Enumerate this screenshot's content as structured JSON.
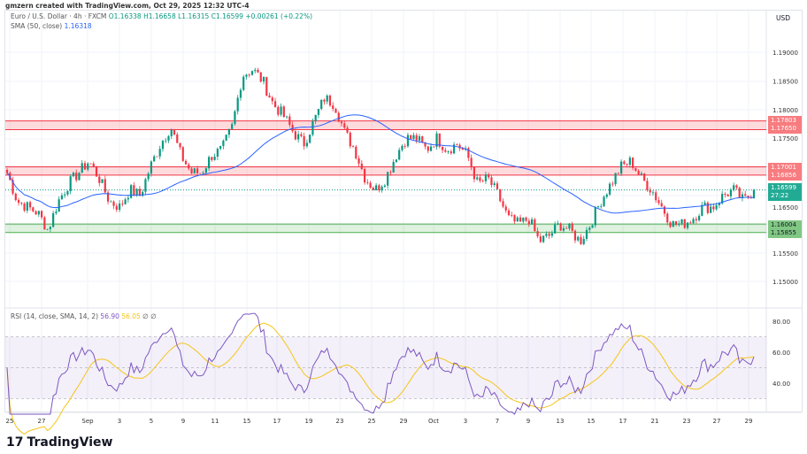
{
  "header": {
    "credit": "gmzern created with TradingView.com, Oct 29, 2025 12:32 UTC-4",
    "symbol": "Euro / U.S. Dollar · 4h · FXCM",
    "open": "O1.16338",
    "high": "H1.16658",
    "low": "L1.16315",
    "close": "C1.16599",
    "change": "+0.00261 (+0.22%)",
    "sma_label": "SMA (50, close)",
    "sma_value": "1.16318",
    "rsi_label": "RSI (14, close, SMA, 14, 2)",
    "rsi_value": "56.90",
    "rsi_sma_value": "56.05",
    "rsi_extra": "∅ ∅"
  },
  "price_axis": {
    "currency": "USD",
    "ticks": [
      "1.19000",
      "1.18500",
      "1.18000",
      "1.17500",
      "1.16500",
      "1.15500",
      "1.15000"
    ]
  },
  "tags": {
    "r1a": "1.17803",
    "r1b": "1.17650",
    "r2a": "1.17001",
    "r2b": "1.16856",
    "last": "1.16599",
    "countdown": "27:22",
    "s1a": "1.16004",
    "s1b": "1.15855"
  },
  "rsi_axis": {
    "ticks": [
      "80.00",
      "60.00",
      "40.00"
    ]
  },
  "time_axis": [
    "25",
    "27",
    "Sep",
    "3",
    "5",
    "9",
    "11",
    "15",
    "17",
    "19",
    "23",
    "25",
    "29",
    "Oct",
    "3",
    "7",
    "9",
    "13",
    "15",
    "17",
    "21",
    "23",
    "27",
    "29"
  ],
  "logo": "TradingView",
  "colors": {
    "up": "#089981",
    "down": "#f23645",
    "sma": "#2962ff",
    "rsi": "#7e57c2",
    "rsi_sma": "#f5c518",
    "resistance": "#f23645",
    "support": "#4caf50"
  },
  "chart_data": {
    "type": "candlestick",
    "interval": "4h",
    "symbol": "EURUSD",
    "closes": [
      1.169,
      1.164,
      1.163,
      1.162,
      1.159,
      1.164,
      1.167,
      1.169,
      1.171,
      1.168,
      1.164,
      1.163,
      1.166,
      1.165,
      1.17,
      1.174,
      1.177,
      1.172,
      1.169,
      1.169,
      1.172,
      1.173,
      1.177,
      1.186,
      1.187,
      1.185,
      1.181,
      1.179,
      1.176,
      1.174,
      1.178,
      1.182,
      1.181,
      1.176,
      1.173,
      1.168,
      1.166,
      1.168,
      1.172,
      1.175,
      1.175,
      1.173,
      1.175,
      1.173,
      1.174,
      1.172,
      1.167,
      1.168,
      1.165,
      1.161,
      1.16,
      1.161,
      1.157,
      1.158,
      1.16,
      1.159,
      1.157,
      1.16,
      1.164,
      1.167,
      1.17,
      1.171,
      1.168,
      1.166,
      1.163,
      1.16,
      1.16,
      1.161,
      1.163,
      1.163,
      1.165,
      1.166,
      1.164,
      1.16599
    ],
    "zones": [
      {
        "type": "resistance",
        "from": 1.1765,
        "to": 1.17803
      },
      {
        "type": "resistance",
        "from": 1.16856,
        "to": 1.17001
      },
      {
        "type": "support",
        "from": 1.15855,
        "to": 1.16004
      }
    ],
    "ylim": [
      1.147,
      1.1935
    ],
    "rsi_ylim": [
      20,
      85
    ],
    "rsi_bands": [
      30,
      70
    ]
  }
}
